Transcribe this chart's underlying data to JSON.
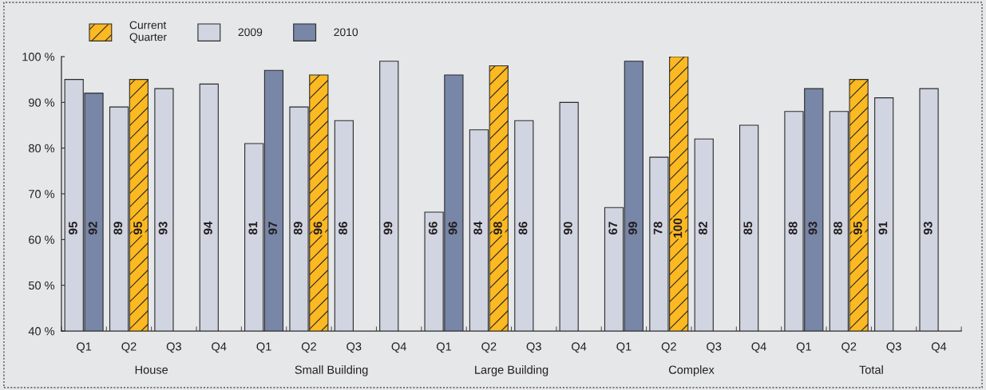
{
  "chart_data": {
    "type": "bar",
    "categories": [
      "Q1",
      "Q2",
      "Q3",
      "Q4",
      "Q1",
      "Q2",
      "Q3",
      "Q4",
      "Q1",
      "Q2",
      "Q3",
      "Q4",
      "Q1",
      "Q2",
      "Q3",
      "Q4",
      "Q1",
      "Q2",
      "Q3",
      "Q4"
    ],
    "series": [
      {
        "name": "Current\nQuarter",
        "color": "#fdb921",
        "values": [
          null,
          95,
          null,
          null,
          null,
          96,
          null,
          null,
          null,
          98,
          null,
          null,
          null,
          100,
          null,
          null,
          null,
          95,
          null,
          null
        ]
      },
      {
        "name": "2009",
        "color": "#d1d5e1",
        "values": [
          95,
          89,
          93,
          94,
          81,
          89,
          86,
          99,
          66,
          84,
          86,
          90,
          67,
          78,
          82,
          85,
          88,
          88,
          91,
          93
        ]
      },
      {
        "name": "2010",
        "color": "#7886a8",
        "values": [
          92,
          null,
          null,
          null,
          97,
          null,
          null,
          null,
          96,
          null,
          null,
          null,
          99,
          null,
          null,
          null,
          93,
          null,
          null,
          null
        ]
      }
    ],
    "ylim": [
      40,
      100
    ],
    "yticks": [
      {
        "value": 40,
        "label": "40 %"
      },
      {
        "value": 50,
        "label": "50 %"
      },
      {
        "value": 60,
        "label": "60 %"
      },
      {
        "value": 70,
        "label": "70 %"
      },
      {
        "value": 80,
        "label": "80 %"
      },
      {
        "value": 90,
        "label": "90 %"
      },
      {
        "value": 100,
        "label": "100 %"
      }
    ],
    "annotations": [
      "House",
      "Small Building",
      "Large Building",
      "Complex",
      "Total"
    ],
    "data_labels": true,
    "legend": "top left"
  }
}
